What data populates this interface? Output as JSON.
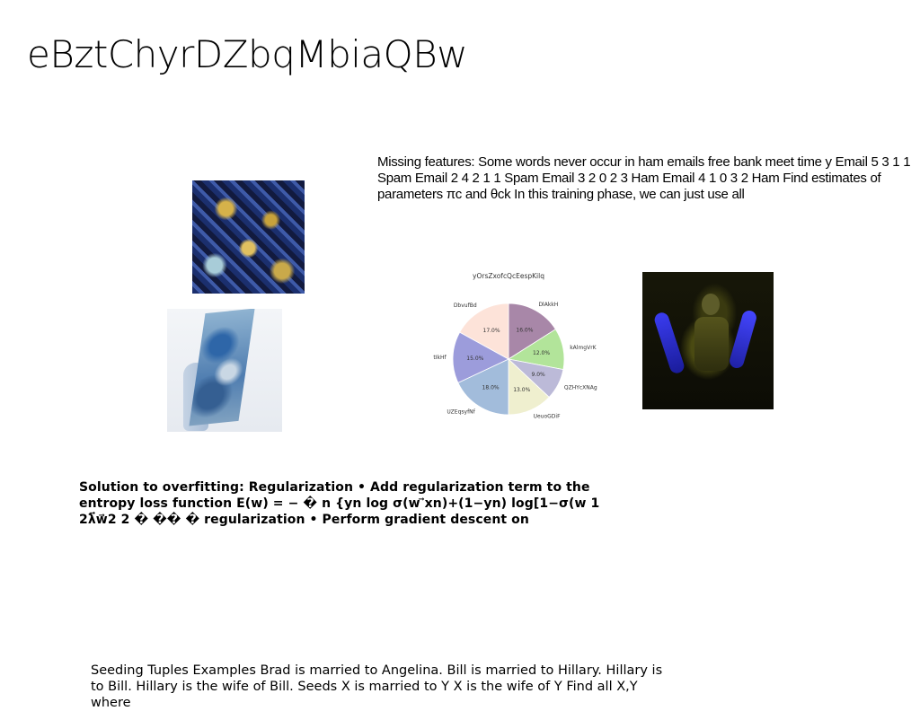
{
  "title": "eBztChyrDZbqMbiaQBw",
  "paragraphs": {
    "missing": "Missing features: Some words never occur in ham emails free bank meet time y Email 5 3 1 1 Spam Email 2 4 2 1 1 Spam Email 3 2 0 2 3 Ham Email 4 1 0 3 2 Ham Find estimates of parameters πc and θck In this training phase, we can just use all",
    "overfit": "Solution to overfitting: Regularization • Add regularization term to the entropy loss function E(w) = − � n {yn log σ(w ⃗xn)+(1−yn) log[1−σ(w 1 2λ⃗w⃗2 2 � �� � regularization • Perform gradient descent on",
    "seeding": "Seeding Tuples Examples Brad is married to Angelina. Bill is married to Hillary. Hillary is to Bill. Hillary is the wife of Bill. Seeds X is married to Y X is the wife of Y Find all X,Y where"
  },
  "chart_data": {
    "type": "pie",
    "title": "yOrsZxofcQcEespKilq",
    "slices": [
      {
        "label": "DlAkkH",
        "value": 16.0,
        "pct_label": "16.0%",
        "color": "#a887a8"
      },
      {
        "label": "kAlmgVrK",
        "value": 12.0,
        "pct_label": "12.0%",
        "color": "#b2e49a"
      },
      {
        "label": "QZHYcXNAg",
        "value": 9.0,
        "pct_label": "9.0%",
        "color": "#bcbad8"
      },
      {
        "label": "UeuoGDiF",
        "value": 13.0,
        "pct_label": "13.0%",
        "color": "#efefcf"
      },
      {
        "label": "UZEqsyfNf",
        "value": 18.0,
        "pct_label": "18.0%",
        "color": "#a2bcdb"
      },
      {
        "label": "tIkHf",
        "value": 15.0,
        "pct_label": "15.0%",
        "color": "#9c9cdb"
      },
      {
        "label": "DbvufBd",
        "value": 17.0,
        "pct_label": "17.0%",
        "color": "#fde3d9"
      }
    ],
    "start_angle_deg": 90,
    "direction": "clockwise"
  }
}
